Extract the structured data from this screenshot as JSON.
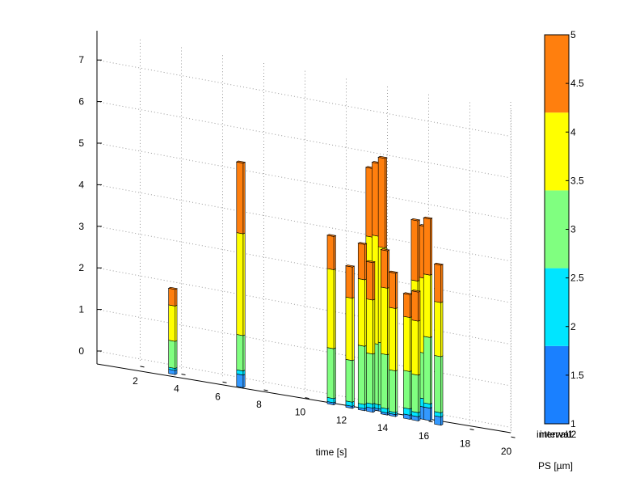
{
  "chart_data": {
    "type": "bar",
    "subtype": "3d-stacked-bar",
    "title": "",
    "xlabel": "time [s]",
    "ylabel": "",
    "xlim": [
      1,
      21
    ],
    "ylim": [
      -0.3,
      7.7
    ],
    "x_ticks": [
      2,
      4,
      6,
      8,
      10,
      12,
      14,
      16,
      18,
      20
    ],
    "y_ticks": [
      0,
      1,
      2,
      3,
      4,
      5,
      6,
      7
    ],
    "grid": true,
    "series": [
      {
        "name": "1-1.5",
        "color": "#1a80ff"
      },
      {
        "name": "1.5-2",
        "color": "#3399ff"
      },
      {
        "name": "2-2.5",
        "color": "#00e5ff"
      },
      {
        "name": "2.5-3",
        "color": "#80ff80"
      },
      {
        "name": "3.5-4",
        "color": "#ffff00"
      },
      {
        "name": "4-5",
        "color": "#ff7f0e"
      }
    ],
    "bars": [
      {
        "t": 4.3,
        "depth": 1,
        "segments": [
          0.0,
          0.1,
          0.05,
          0.65,
          0.85,
          0.4
        ]
      },
      {
        "t": 7.6,
        "depth": 1,
        "segments": [
          0.0,
          0.3,
          0.1,
          0.85,
          2.45,
          1.7
        ]
      },
      {
        "t": 12.0,
        "depth": 1,
        "segments": [
          0.0,
          0.05,
          0.1,
          1.2,
          1.9,
          0.8
        ]
      },
      {
        "t": 12.9,
        "depth": 1,
        "segments": [
          0.0,
          0.05,
          0.1,
          1.0,
          1.5,
          0.75
        ]
      },
      {
        "t": 13.5,
        "depth": 1,
        "segments": [
          0.0,
          0.05,
          0.1,
          1.4,
          1.6,
          0.85
        ]
      },
      {
        "t": 13.9,
        "depth": 1,
        "segments": [
          0.0,
          0.1,
          0.1,
          1.2,
          1.3,
          0.9
        ]
      },
      {
        "t": 13.7,
        "depth": 2,
        "segments": [
          0.0,
          0.05,
          0.1,
          2.0,
          2.0,
          1.65
        ]
      },
      {
        "t": 14.0,
        "depth": 2,
        "segments": [
          0.0,
          0.05,
          0.1,
          1.45,
          2.6,
          1.75
        ]
      },
      {
        "t": 14.3,
        "depth": 2,
        "segments": [
          0.0,
          0.05,
          0.1,
          1.5,
          2.3,
          2.15
        ]
      },
      {
        "t": 14.6,
        "depth": 1,
        "segments": [
          0.0,
          0.05,
          0.1,
          1.3,
          1.6,
          0.9
        ]
      },
      {
        "t": 15.0,
        "depth": 1,
        "segments": [
          0.0,
          0.05,
          0.05,
          1.0,
          1.5,
          0.85
        ]
      },
      {
        "t": 15.7,
        "depth": 1,
        "segments": [
          0.0,
          0.1,
          0.15,
          0.9,
          1.3,
          0.55
        ]
      },
      {
        "t": 15.9,
        "depth": 2,
        "segments": [
          0.0,
          0.1,
          0.1,
          1.05,
          2.05,
          1.45
        ]
      },
      {
        "t": 16.1,
        "depth": 1,
        "segments": [
          0.0,
          0.1,
          0.1,
          0.9,
          1.3,
          0.7
        ]
      },
      {
        "t": 16.3,
        "depth": 2,
        "segments": [
          0.0,
          0.3,
          0.2,
          1.1,
          1.8,
          1.25
        ]
      },
      {
        "t": 16.5,
        "depth": 2,
        "segments": [
          0.0,
          0.3,
          0.1,
          1.6,
          1.5,
          1.35
        ]
      },
      {
        "t": 17.2,
        "depth": 1,
        "segments": [
          0.0,
          0.2,
          0.1,
          1.35,
          1.3,
          0.9
        ]
      }
    ],
    "colorbar": {
      "label": "PS [µm]",
      "range": [
        1,
        5
      ],
      "ticks": [
        "1",
        "1.5",
        "2",
        "2.5",
        "3",
        "3.5",
        "4",
        "4.5",
        "5"
      ],
      "bottom_labels": [
        "interval1",
        "interval2"
      ],
      "colors": [
        "#1a80ff",
        "#00e5ff",
        "#80ff80",
        "#ffff00",
        "#ff7f0e"
      ]
    }
  }
}
